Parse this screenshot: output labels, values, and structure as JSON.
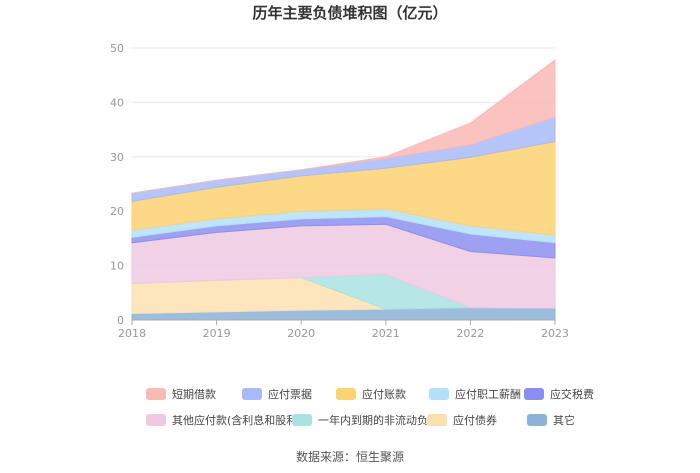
{
  "chart_data": {
    "type": "area",
    "stacked": true,
    "title": "历年主要负债堆积图（亿元）",
    "x": [
      "2018",
      "2019",
      "2020",
      "2021",
      "2022",
      "2023"
    ],
    "ylim": [
      0,
      50
    ],
    "yticks": [
      0,
      10,
      20,
      30,
      40,
      50
    ],
    "grid": true,
    "legend_position": "bottom",
    "series": [
      {
        "name": "其它",
        "color": "#8cb2d9",
        "values": [
          1.2,
          1.5,
          1.8,
          2.0,
          2.3,
          2.2
        ]
      },
      {
        "name": "应付债券",
        "color": "#fde0b2",
        "values": [
          5.5,
          5.8,
          6.0,
          0,
          0,
          0
        ]
      },
      {
        "name": "一年内到期的非流动负债",
        "color": "#a9e2e2",
        "values": [
          0,
          0,
          0,
          6.4,
          0,
          0
        ]
      },
      {
        "name": "其他应付款(含利息和股利)",
        "color": "#efc9e2",
        "values": [
          7.5,
          8.8,
          9.5,
          9.2,
          10.3,
          9.2
        ]
      },
      {
        "name": "应交税费",
        "color": "#8d8ff0",
        "values": [
          1.0,
          1.2,
          1.3,
          1.4,
          3.2,
          2.8
        ]
      },
      {
        "name": "应付职工薪酬",
        "color": "#b3e1f7",
        "values": [
          1.3,
          1.3,
          1.4,
          1.4,
          1.5,
          1.4
        ]
      },
      {
        "name": "应付账款",
        "color": "#fdd272",
        "values": [
          5.3,
          5.8,
          6.5,
          7.5,
          12.6,
          17.2
        ]
      },
      {
        "name": "应付票据",
        "color": "#a8baf8",
        "values": [
          1.5,
          1.3,
          1.1,
          1.8,
          2.3,
          4.5
        ]
      },
      {
        "name": "短期借款",
        "color": "#f9b9b4",
        "values": [
          0,
          0,
          0,
          0.3,
          4.0,
          10.5
        ]
      }
    ],
    "legend_order": [
      "短期借款",
      "应付票据",
      "应付账款",
      "应付职工薪酬",
      "应交税费",
      "其他应付款(含利息和股利)",
      "一年内到期的非流动负债",
      "应付债券",
      "其它"
    ],
    "source": "数据来源：恒生聚源"
  }
}
